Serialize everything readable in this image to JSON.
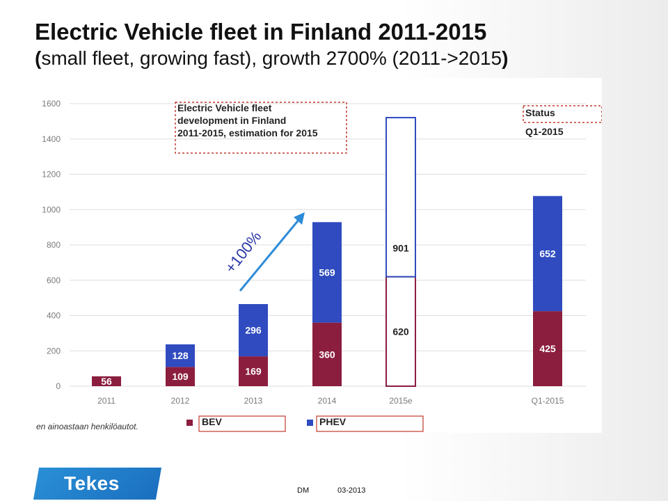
{
  "slide": {
    "title": "Electric Vehicle fleet in Finland 2011-2015",
    "subtitle_bold": "(",
    "subtitle_main": "small fleet, growing fast), growth 2700% (2011->2015",
    "subtitle_bold_end": ")"
  },
  "footer": {
    "logo_text": "Tekes",
    "author": "DM",
    "date": "03-2013"
  },
  "colors": {
    "bev": "#8b1e3f",
    "phev": "#2f4bbf",
    "arrow": "#2e8bd8",
    "annotation_border": "#c0392b"
  },
  "chart_data": {
    "type": "bar",
    "stacked": true,
    "categories": [
      "2011",
      "2012",
      "2013",
      "2014",
      "2015e",
      "Q1-2015"
    ],
    "series": [
      {
        "name": "BEV",
        "values": [
          56,
          109,
          169,
          360,
          620,
          425
        ]
      },
      {
        "name": "PHEV",
        "values": [
          0,
          128,
          296,
          569,
          901,
          652
        ]
      }
    ],
    "segment_labels": {
      "BEV": [
        "56",
        "109",
        "169",
        "360",
        "620",
        "425"
      ],
      "PHEV": [
        "",
        "128",
        "296",
        "569",
        "901",
        "652"
      ]
    },
    "estimated_category": "2015e",
    "ylim": [
      0,
      1600
    ],
    "yticks": [
      0,
      200,
      400,
      600,
      800,
      1000,
      1200,
      1400,
      1600
    ],
    "grid": true,
    "legend": [
      "BEV",
      "PHEV"
    ],
    "annotation_box": [
      "Electric Vehicle fleet",
      "development in Finland",
      "2011-2015, estimation for 2015"
    ],
    "status_box": [
      "Status",
      "Q1-2015"
    ],
    "growth_label": "+100%",
    "footnote": "en ainoastaan henkilöautot."
  }
}
